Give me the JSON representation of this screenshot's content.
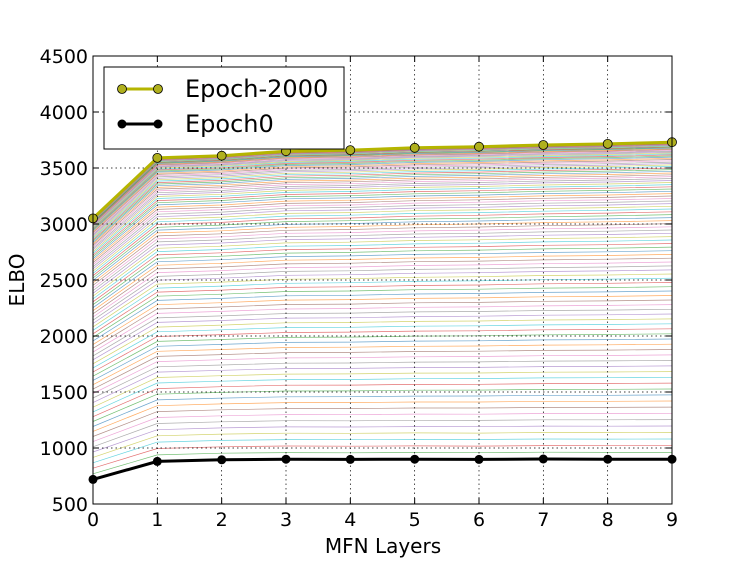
{
  "chart_data": {
    "type": "line",
    "xlabel": "MFN Layers",
    "ylabel": "ELBO",
    "xlim": [
      0,
      9
    ],
    "ylim": [
      500,
      4500
    ],
    "x_ticks": [
      "0",
      "1",
      "2",
      "3",
      "4",
      "5",
      "6",
      "7",
      "8",
      "9"
    ],
    "y_ticks": [
      "500",
      "1000",
      "1500",
      "2000",
      "2500",
      "3000",
      "3500",
      "4000",
      "4500"
    ],
    "grid": true,
    "legend_position": "top-left",
    "x": [
      0,
      1,
      2,
      3,
      4,
      5,
      6,
      7,
      8,
      9
    ],
    "series": [
      {
        "name": "Epoch-2000",
        "color": "#b5b500",
        "marker_fill": "#b0b01e",
        "values": [
          3050,
          3590,
          3610,
          3650,
          3660,
          3680,
          3690,
          3705,
          3715,
          3730
        ]
      },
      {
        "name": "Epoch0",
        "color": "#000000",
        "marker_fill": "#000000",
        "values": [
          720,
          880,
          895,
          900,
          898,
          900,
          898,
          902,
          900,
          900
        ]
      }
    ],
    "intermediate_series_count": 110
  }
}
